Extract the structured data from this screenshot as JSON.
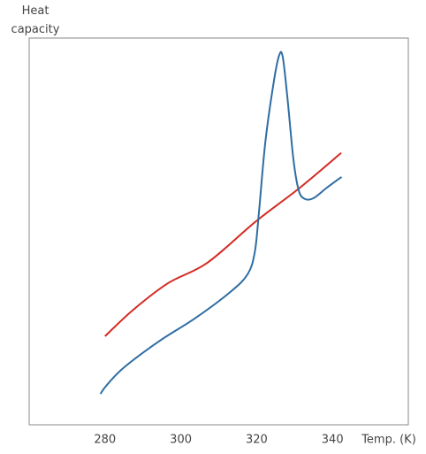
{
  "chart_data": {
    "type": "line",
    "y_label": "Heat capacity",
    "x_label": "Temp. (K)",
    "xlim": [
      260,
      360
    ],
    "xticks": [
      280,
      300,
      320,
      340
    ],
    "ylim": [
      0,
      100
    ],
    "series": [
      {
        "name": null,
        "color": "#d42a22",
        "x": [
          280,
          287.4,
          296.6,
          307,
          319.8,
          331.4,
          342.3
        ],
        "values": [
          22.9,
          29.7,
          36.6,
          41.9,
          52.6,
          61.3,
          70.3
        ]
      },
      {
        "name": null,
        "color": "#2f6da3",
        "x": [
          278.8,
          280.5,
          285.1,
          294.4,
          303.7,
          313,
          317.6,
          319.5,
          320.6,
          322.3,
          324.6,
          326,
          326.9,
          328.1,
          329.7,
          331.1,
          332.7,
          335,
          338.5,
          342.4
        ],
        "values": [
          8.0,
          10.3,
          14.9,
          21.7,
          27.5,
          34.3,
          38.9,
          44.6,
          54.9,
          73.2,
          89.2,
          95.7,
          95,
          84.7,
          68.6,
          60.6,
          58.4,
          58.6,
          61.3,
          64.1
        ]
      }
    ]
  }
}
